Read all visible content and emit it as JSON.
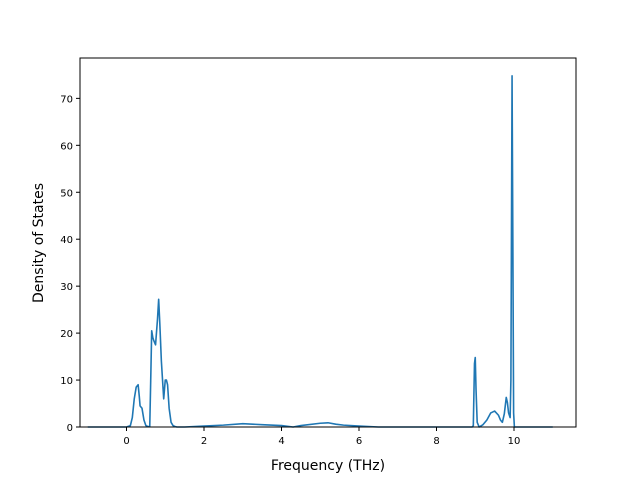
{
  "chart_data": {
    "type": "line",
    "title": "",
    "xlabel": "Frequency (THz)",
    "ylabel": "Density of States",
    "xlim": [
      -1.2,
      11.6
    ],
    "ylim": [
      0,
      78.6
    ],
    "xticks": [
      0,
      2,
      4,
      6,
      8,
      10
    ],
    "yticks": [
      0,
      10,
      20,
      30,
      40,
      50,
      60,
      70
    ],
    "grid": false,
    "line_color": "#1f77b4",
    "series": [
      {
        "name": "",
        "x": [
          -1.0,
          0.0,
          0.1,
          0.15,
          0.2,
          0.25,
          0.3,
          0.33,
          0.35,
          0.4,
          0.45,
          0.5,
          0.55,
          0.6,
          0.63,
          0.65,
          0.68,
          0.7,
          0.75,
          0.8,
          0.83,
          0.86,
          0.9,
          0.93,
          0.96,
          1.0,
          1.03,
          1.06,
          1.1,
          1.15,
          1.2,
          1.25,
          1.3,
          1.35,
          1.5,
          2.0,
          2.5,
          3.0,
          3.5,
          4.0,
          4.1,
          4.3,
          4.5,
          5.0,
          5.2,
          5.4,
          5.6,
          6.0,
          6.5,
          7.0,
          8.0,
          8.85,
          8.92,
          8.95,
          8.98,
          9.0,
          9.02,
          9.05,
          9.1,
          9.2,
          9.3,
          9.4,
          9.5,
          9.6,
          9.65,
          9.7,
          9.75,
          9.8,
          9.83,
          9.86,
          9.9,
          9.92,
          9.95,
          9.97,
          9.99,
          10.01,
          10.03,
          10.1,
          11.0
        ],
        "y": [
          0,
          0,
          0.3,
          2,
          6,
          8.5,
          9,
          6.5,
          4.5,
          4,
          1.5,
          0.3,
          0.1,
          0.1,
          12,
          20.5,
          19,
          18.5,
          17.5,
          23,
          27.2,
          22,
          14,
          10,
          6,
          10,
          10,
          9,
          4,
          1,
          0.3,
          0.1,
          0,
          0,
          0,
          0.2,
          0.4,
          0.7,
          0.5,
          0.3,
          0.2,
          0,
          0.3,
          0.8,
          0.9,
          0.6,
          0.4,
          0.2,
          0,
          0,
          0,
          0,
          0,
          0.3,
          13.5,
          14.8,
          8,
          1,
          0,
          0.5,
          1.5,
          3,
          3.4,
          2.5,
          1.5,
          1.0,
          2.8,
          6.3,
          5.2,
          3,
          2,
          10,
          74.8,
          40,
          3,
          0,
          0,
          0,
          0
        ]
      }
    ]
  }
}
